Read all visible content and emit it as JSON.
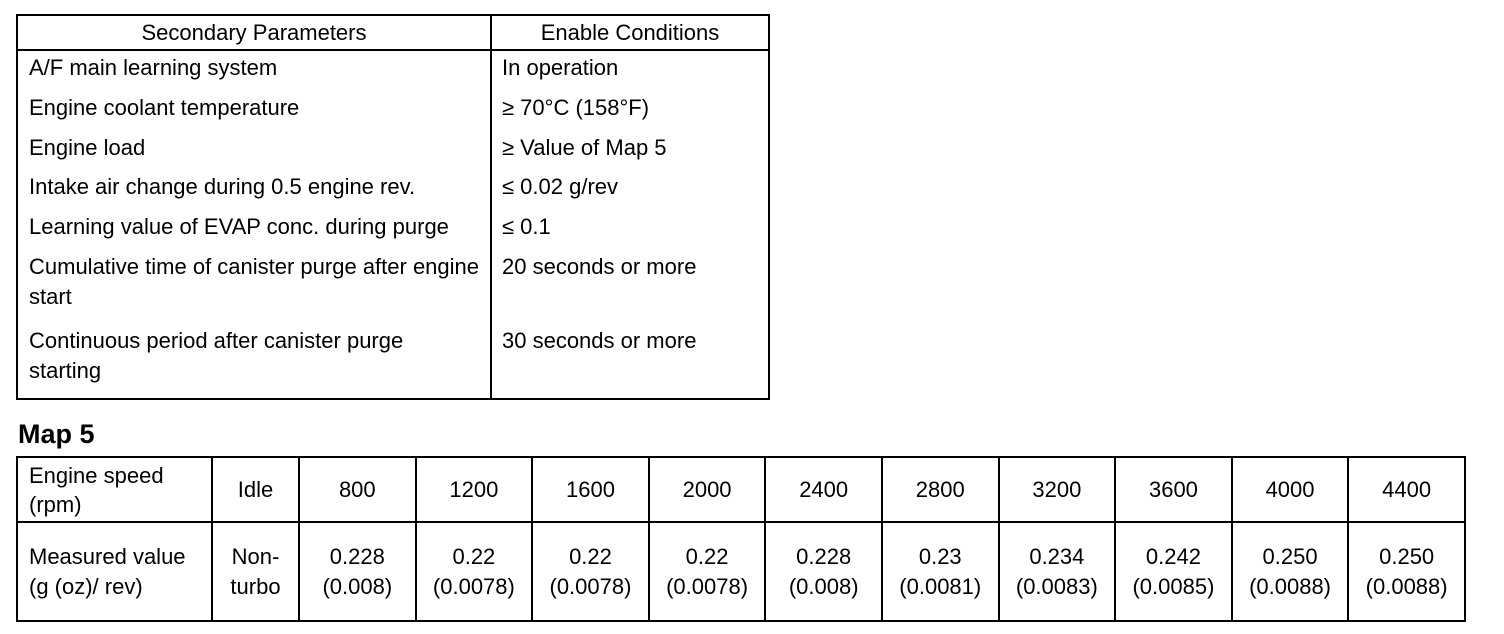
{
  "params_table": {
    "headers": [
      "Secondary Parameters",
      "Enable Conditions"
    ],
    "rows": [
      {
        "param": "A/F main learning system",
        "condition": "In operation"
      },
      {
        "param": "Engine coolant temperature",
        "condition": "≥ 70°C (158°F)"
      },
      {
        "param": "Engine load",
        "condition": "≥ Value of Map 5"
      },
      {
        "param": "Intake air change during 0.5 engine rev.",
        "condition": "≤ 0.02 g/rev"
      },
      {
        "param": "Learning value of EVAP conc. during purge",
        "condition": "≤ 0.1"
      },
      {
        "param": "Cumulative time of canister purge after engine start",
        "condition": "20 seconds or more"
      },
      {
        "param": "Continuous period after canister purge starting",
        "condition": "30 seconds or more"
      }
    ]
  },
  "map5": {
    "title": "Map 5",
    "speed_label": "Engine speed (rpm)",
    "idle_label": "Idle",
    "speeds": [
      "800",
      "1200",
      "1600",
      "2000",
      "2400",
      "2800",
      "3200",
      "3600",
      "4000",
      "4400"
    ],
    "value_label": "Measured value (g (oz)/ rev)",
    "idle_value": "Non-turbo",
    "values": [
      {
        "g": "0.228",
        "oz": "(0.008)"
      },
      {
        "g": "0.22",
        "oz": "(0.0078)"
      },
      {
        "g": "0.22",
        "oz": "(0.0078)"
      },
      {
        "g": "0.22",
        "oz": "(0.0078)"
      },
      {
        "g": "0.228",
        "oz": "(0.008)"
      },
      {
        "g": "0.23",
        "oz": "(0.0081)"
      },
      {
        "g": "0.234",
        "oz": "(0.0083)"
      },
      {
        "g": "0.242",
        "oz": "(0.0085)"
      },
      {
        "g": "0.250",
        "oz": "(0.0088)"
      },
      {
        "g": "0.250",
        "oz": "(0.0088)"
      }
    ]
  }
}
